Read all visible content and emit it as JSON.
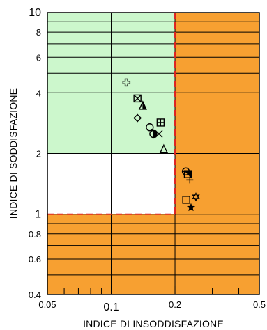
{
  "chart_data": {
    "type": "scatter",
    "xlabel": "INDICE DI INSODDISFAZIONE",
    "ylabel": "INDICE DI SODDISFAZIONE",
    "xscale": "log",
    "yscale": "log",
    "xlim": [
      0.05,
      0.5
    ],
    "ylim": [
      0.4,
      10
    ],
    "x_tick_labels": [
      "0.05",
      "0.1",
      "0.2",
      "0.5"
    ],
    "y_tick_labels": [
      "0.4",
      "0.6",
      "0.8",
      "1",
      "2",
      "4",
      "6",
      "8",
      "10"
    ],
    "regions": [
      {
        "x": [
          0.05,
          0.2
        ],
        "y": [
          2,
          10
        ],
        "color": "#ccf7cc"
      },
      {
        "x": [
          0.05,
          0.2
        ],
        "y": [
          1,
          2
        ],
        "color": "#ffffff"
      },
      {
        "x": [
          0.05,
          0.2
        ],
        "y": [
          0.4,
          1
        ],
        "color": "#f7a031"
      },
      {
        "x": [
          0.2,
          0.5
        ],
        "y": [
          0.4,
          10
        ],
        "color": "#f7a031"
      }
    ],
    "threshold_x": 0.2,
    "threshold_y": 1,
    "threshold_color": "#dd2222",
    "points": [
      {
        "marker": "plus-bold",
        "x": 0.118,
        "y": 4.5
      },
      {
        "marker": "square-x",
        "x": 0.133,
        "y": 3.75
      },
      {
        "marker": "triangle-half",
        "x": 0.141,
        "y": 3.45
      },
      {
        "marker": "diamond",
        "x": 0.133,
        "y": 3.0
      },
      {
        "marker": "square-plus",
        "x": 0.171,
        "y": 2.85
      },
      {
        "marker": "circle",
        "x": 0.152,
        "y": 2.7
      },
      {
        "marker": "circle-half",
        "x": 0.158,
        "y": 2.5
      },
      {
        "marker": "x",
        "x": 0.168,
        "y": 2.5
      },
      {
        "marker": "triangle",
        "x": 0.177,
        "y": 2.1
      },
      {
        "marker": "circle-slash",
        "x": 0.225,
        "y": 1.63
      },
      {
        "marker": "square-half",
        "x": 0.23,
        "y": 1.58
      },
      {
        "marker": "plus",
        "x": 0.235,
        "y": 1.48
      },
      {
        "marker": "square",
        "x": 0.226,
        "y": 1.18
      },
      {
        "marker": "star6",
        "x": 0.251,
        "y": 1.22
      },
      {
        "marker": "star-filled",
        "x": 0.238,
        "y": 1.08
      }
    ]
  }
}
